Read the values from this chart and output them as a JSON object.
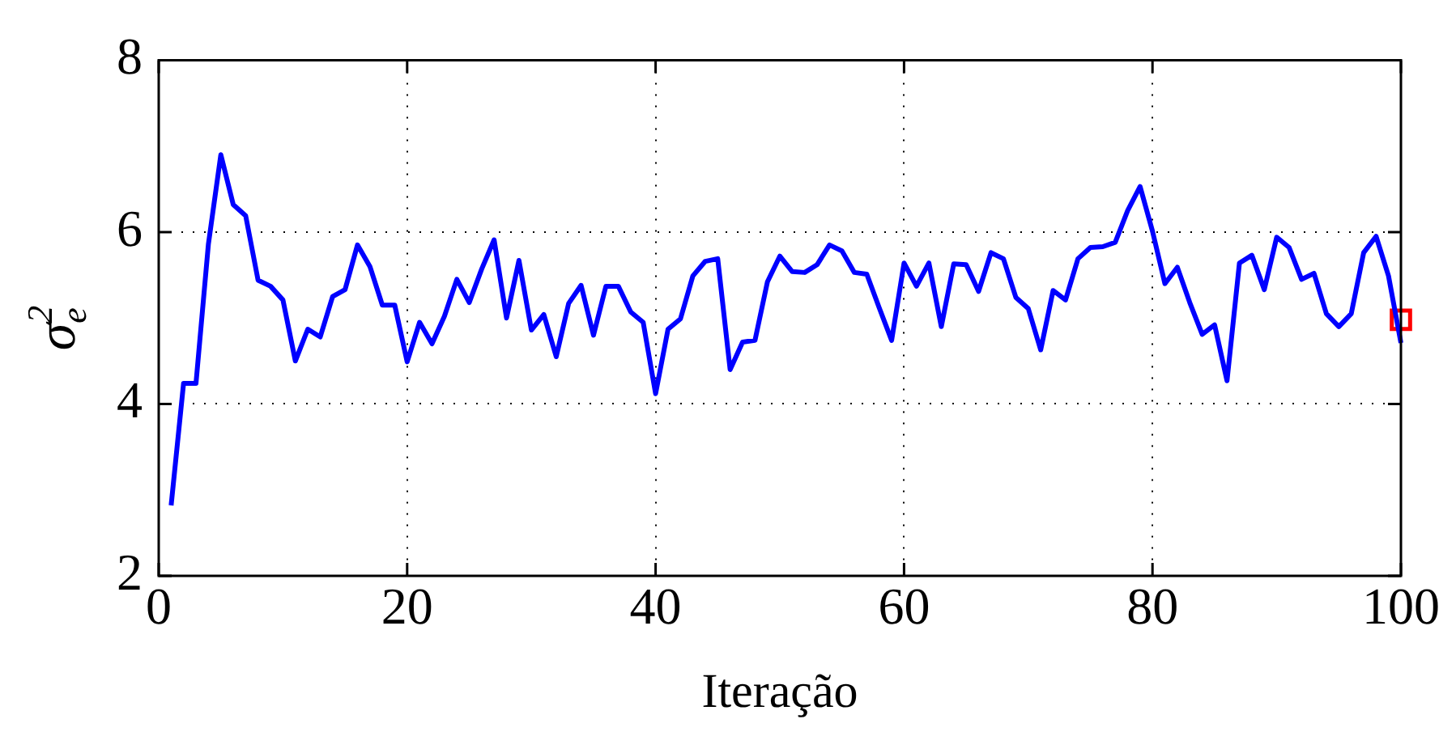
{
  "chart_data": {
    "type": "line",
    "xlabel": "Iteração",
    "ylabel": "σ$_{e}$$^{2}$",
    "xlim": [
      0,
      100
    ],
    "xticks": [
      0,
      20,
      40,
      60,
      80,
      100
    ],
    "ylim": [
      2,
      8
    ],
    "yticks": [
      2,
      4,
      6,
      8
    ],
    "grid": true,
    "series": [
      {
        "color": "#0000ff",
        "marker": "none",
        "x": [
          1,
          2,
          3,
          4,
          5,
          6,
          7,
          8,
          9,
          10,
          11,
          12,
          13,
          14,
          15,
          16,
          17,
          18,
          19,
          20,
          21,
          22,
          23,
          24,
          25,
          26,
          27,
          28,
          29,
          30,
          31,
          32,
          33,
          34,
          35,
          36,
          37,
          38,
          39,
          40,
          41,
          42,
          43,
          44,
          45,
          46,
          47,
          48,
          49,
          50,
          51,
          52,
          53,
          54,
          55,
          56,
          57,
          58,
          59,
          60,
          61,
          62,
          63,
          64,
          65,
          66,
          67,
          68,
          69,
          70,
          71,
          72,
          73,
          74,
          75,
          76,
          77,
          78,
          79,
          80,
          81,
          82,
          83,
          84,
          85,
          86,
          87,
          88,
          89,
          90,
          91,
          92,
          93,
          94,
          95,
          96,
          97,
          98,
          99,
          100
        ],
        "values": [
          2.82,
          4.24,
          4.24,
          5.86,
          6.9,
          6.32,
          6.19,
          5.44,
          5.37,
          5.21,
          4.5,
          4.87,
          4.78,
          5.25,
          5.33,
          5.85,
          5.6,
          5.15,
          5.15,
          4.49,
          4.95,
          4.7,
          5.02,
          5.45,
          5.18,
          5.57,
          5.91,
          5.0,
          5.67,
          4.86,
          5.04,
          4.55,
          5.17,
          5.38,
          4.8,
          5.37,
          5.37,
          5.07,
          4.95,
          4.12,
          4.87,
          4.99,
          5.49,
          5.66,
          5.69,
          4.4,
          4.72,
          4.74,
          5.42,
          5.72,
          5.54,
          5.53,
          5.62,
          5.85,
          5.78,
          5.53,
          5.51,
          5.12,
          4.74,
          5.64,
          5.37,
          5.64,
          4.9,
          5.63,
          5.62,
          5.31,
          5.76,
          5.69,
          5.24,
          5.11,
          4.63,
          5.32,
          5.21,
          5.69,
          5.82,
          5.83,
          5.88,
          6.25,
          6.53,
          6.01,
          5.4,
          5.59,
          5.18,
          4.81,
          4.92,
          4.27,
          5.64,
          5.73,
          5.33,
          5.94,
          5.82,
          5.45,
          5.52,
          5.05,
          4.9,
          5.05,
          5.76,
          5.95,
          5.49,
          4.71
        ]
      },
      {
        "type": "scatter",
        "color": "#ff0000",
        "marker": "square",
        "x": [
          100
        ],
        "values": [
          4.98
        ]
      }
    ]
  }
}
